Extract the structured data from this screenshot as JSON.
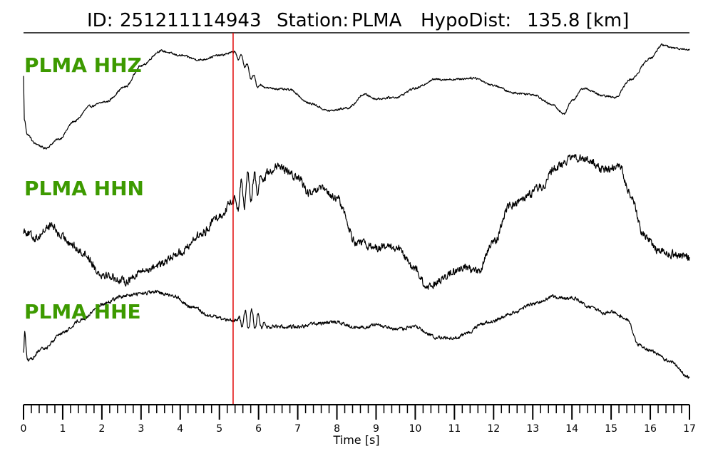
{
  "title": {
    "id_label": "ID:",
    "id": "251211114943",
    "station_label": "Station:",
    "station": "PLMA",
    "hypodist_label": "HypoDist:",
    "hypodist": "135.8 [km]"
  },
  "colors": {
    "trace": "#000000",
    "pick_line": "#e00000",
    "channel_label": "#3d9a00",
    "background": "#ffffff"
  },
  "chart_data": {
    "type": "line",
    "title": "ID: 251211114943   Station: PLMA   HypoDist:   135.8 [km]",
    "xlabel": "Time [s]",
    "ylabel": "",
    "xlim": [
      0,
      17
    ],
    "x_ticks": [
      0,
      1,
      2,
      3,
      4,
      5,
      6,
      7,
      8,
      9,
      10,
      11,
      12,
      13,
      14,
      15,
      16,
      17
    ],
    "minor_tick_step": 0.2,
    "pick_time": 5.35,
    "grid": false,
    "series": [
      {
        "name": "PLMA HHZ",
        "noise": 0.03,
        "burst": {
          "start": 5.35,
          "end": 6.6,
          "amp": 0.35,
          "freq": 6
        },
        "points": [
          [
            0.0,
            0.9
          ],
          [
            0.02,
            -0.55
          ],
          [
            0.1,
            -1.05
          ],
          [
            0.3,
            -1.35
          ],
          [
            0.55,
            -1.5
          ],
          [
            0.9,
            -1.2
          ],
          [
            1.3,
            -0.6
          ],
          [
            1.7,
            -0.1
          ],
          [
            2.1,
            0.05
          ],
          [
            2.6,
            0.55
          ],
          [
            3.0,
            1.25
          ],
          [
            3.5,
            1.75
          ],
          [
            4.0,
            1.6
          ],
          [
            4.5,
            1.45
          ],
          [
            5.0,
            1.6
          ],
          [
            5.35,
            1.7
          ],
          [
            5.6,
            1.45
          ],
          [
            5.8,
            0.95
          ],
          [
            6.0,
            0.6
          ],
          [
            6.3,
            0.5
          ],
          [
            6.8,
            0.45
          ],
          [
            7.3,
            0.0
          ],
          [
            7.8,
            -0.25
          ],
          [
            8.3,
            -0.15
          ],
          [
            8.7,
            0.3
          ],
          [
            9.0,
            0.15
          ],
          [
            9.5,
            0.2
          ],
          [
            10.0,
            0.5
          ],
          [
            10.5,
            0.8
          ],
          [
            11.0,
            0.8
          ],
          [
            11.5,
            0.85
          ],
          [
            12.0,
            0.6
          ],
          [
            12.5,
            0.35
          ],
          [
            13.0,
            0.3
          ],
          [
            13.5,
            -0.05
          ],
          [
            13.8,
            -0.35
          ],
          [
            14.0,
            0.1
          ],
          [
            14.3,
            0.5
          ],
          [
            14.8,
            0.25
          ],
          [
            15.1,
            0.2
          ],
          [
            15.5,
            0.8
          ],
          [
            16.0,
            1.5
          ],
          [
            16.3,
            1.95
          ],
          [
            16.6,
            1.85
          ],
          [
            17.0,
            1.8
          ]
        ]
      },
      {
        "name": "PLMA HHN",
        "noise": 0.07,
        "burst": {
          "start": 5.35,
          "end": 6.8,
          "amp": 0.6,
          "freq": 6
        },
        "points": [
          [
            0.0,
            -0.05
          ],
          [
            0.3,
            -0.2
          ],
          [
            0.7,
            0.05
          ],
          [
            1.0,
            -0.2
          ],
          [
            1.5,
            -0.5
          ],
          [
            2.0,
            -0.95
          ],
          [
            2.6,
            -1.1
          ],
          [
            3.0,
            -0.9
          ],
          [
            3.5,
            -0.75
          ],
          [
            4.0,
            -0.5
          ],
          [
            4.5,
            -0.15
          ],
          [
            5.0,
            0.25
          ],
          [
            5.35,
            0.55
          ],
          [
            5.8,
            0.85
          ],
          [
            6.5,
            1.25
          ],
          [
            7.0,
            1.05
          ],
          [
            7.3,
            0.7
          ],
          [
            7.6,
            0.8
          ],
          [
            8.0,
            0.6
          ],
          [
            8.5,
            -0.3
          ],
          [
            9.0,
            -0.4
          ],
          [
            9.5,
            -0.4
          ],
          [
            10.0,
            -0.85
          ],
          [
            10.3,
            -1.25
          ],
          [
            10.7,
            -1.05
          ],
          [
            11.0,
            -0.9
          ],
          [
            11.3,
            -0.8
          ],
          [
            11.6,
            -0.9
          ],
          [
            12.0,
            -0.3
          ],
          [
            12.4,
            0.45
          ],
          [
            12.8,
            0.65
          ],
          [
            13.2,
            0.85
          ],
          [
            13.6,
            1.25
          ],
          [
            14.0,
            1.45
          ],
          [
            14.4,
            1.4
          ],
          [
            14.8,
            1.2
          ],
          [
            15.2,
            1.3
          ],
          [
            15.5,
            0.7
          ],
          [
            15.8,
            -0.1
          ],
          [
            16.2,
            -0.45
          ],
          [
            16.6,
            -0.55
          ],
          [
            17.0,
            -0.6
          ]
        ]
      },
      {
        "name": "PLMA HHE",
        "noise": 0.05,
        "burst": {
          "start": 5.45,
          "end": 6.8,
          "amp": 0.6,
          "freq": 6
        },
        "points": [
          [
            0.0,
            -1.05
          ],
          [
            0.03,
            -0.4
          ],
          [
            0.1,
            -1.35
          ],
          [
            0.5,
            -0.95
          ],
          [
            1.0,
            -0.4
          ],
          [
            1.5,
            0.05
          ],
          [
            2.0,
            0.55
          ],
          [
            2.5,
            0.8
          ],
          [
            3.0,
            0.9
          ],
          [
            3.4,
            0.95
          ],
          [
            3.8,
            0.85
          ],
          [
            4.3,
            0.45
          ],
          [
            4.8,
            0.15
          ],
          [
            5.3,
            0.0
          ],
          [
            5.8,
            0.05
          ],
          [
            6.3,
            -0.2
          ],
          [
            7.0,
            -0.2
          ],
          [
            7.5,
            -0.1
          ],
          [
            8.0,
            -0.05
          ],
          [
            8.5,
            -0.25
          ],
          [
            9.0,
            -0.15
          ],
          [
            9.5,
            -0.3
          ],
          [
            10.0,
            -0.2
          ],
          [
            10.5,
            -0.55
          ],
          [
            11.0,
            -0.6
          ],
          [
            11.3,
            -0.45
          ],
          [
            11.7,
            -0.1
          ],
          [
            12.0,
            -0.0
          ],
          [
            12.5,
            0.25
          ],
          [
            13.0,
            0.55
          ],
          [
            13.5,
            0.8
          ],
          [
            14.0,
            0.75
          ],
          [
            14.5,
            0.45
          ],
          [
            14.8,
            0.25
          ],
          [
            15.0,
            0.3
          ],
          [
            15.4,
            0.05
          ],
          [
            15.7,
            -0.8
          ],
          [
            16.0,
            -1.0
          ],
          [
            16.5,
            -1.35
          ],
          [
            17.0,
            -1.9
          ]
        ]
      }
    ]
  }
}
